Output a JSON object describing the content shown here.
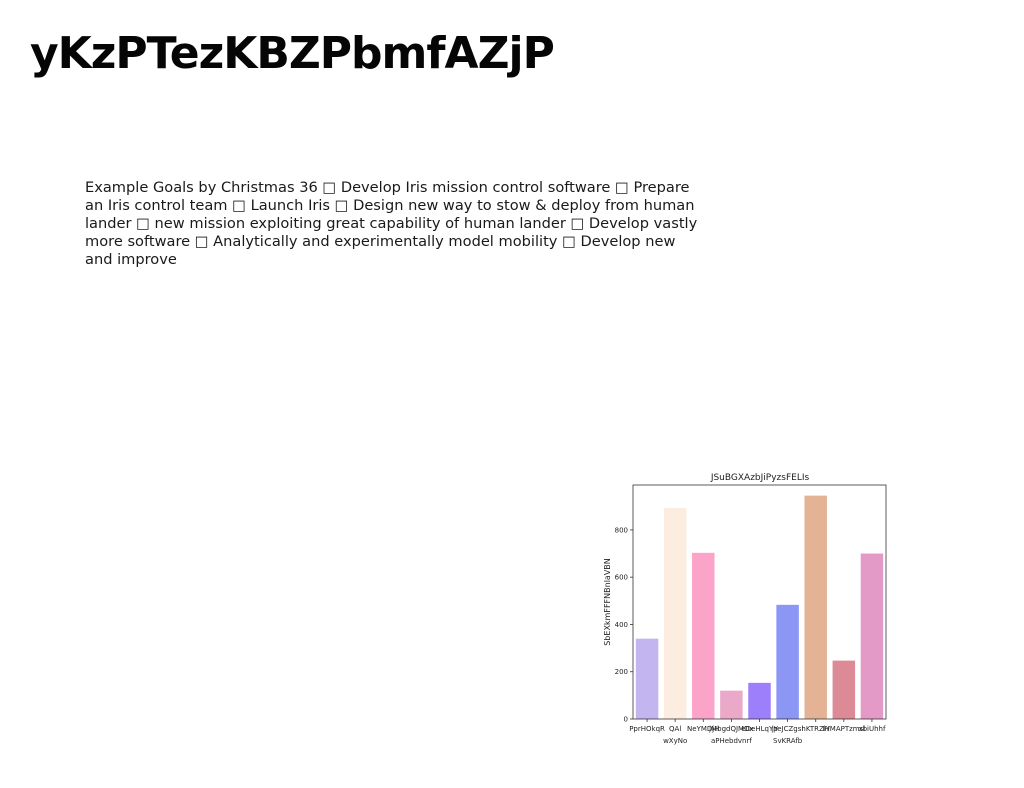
{
  "slide": {
    "title": "yKzPTezKBZPbmfAZjP",
    "body_text": "Example Goals by Christmas 36 □ Develop Iris mission control software □ Prepare an Iris control team □ Launch Iris □ Design new way to stow & deploy from human lander □ new mission exploiting great capability of human lander □ Develop vastly more software □ Analytically and experimentally model mobility □ Develop new and improve"
  },
  "chart_data": {
    "type": "bar",
    "title": "JSuBGXAzbJiPyzsFELIs",
    "xlabel": "",
    "ylabel": "SbEXkmFFFNBnlaVBN",
    "ylim": [
      0,
      990
    ],
    "yticks": [
      0,
      200,
      400,
      600,
      800
    ],
    "categories": [
      "PprHOkqR",
      "QAl wXyNo",
      "NeYMDjH",
      "jMbgdQJMDx aPHebdvnrf",
      "eDeHLqYp",
      "jYeJCZgsl SvKRAfb",
      "hKTRZlY",
      "IHMAPTzmsl",
      "xbiUhhf"
    ],
    "values": [
      340,
      893,
      703,
      120,
      153,
      483,
      945,
      247,
      700
    ],
    "colors": [
      "#c3b5f0",
      "#fcede0",
      "#fba3c8",
      "#eba9ca",
      "#9d7ffb",
      "#8c96f5",
      "#e4b396",
      "#db8a96",
      "#e39ac6"
    ],
    "grid": false
  }
}
